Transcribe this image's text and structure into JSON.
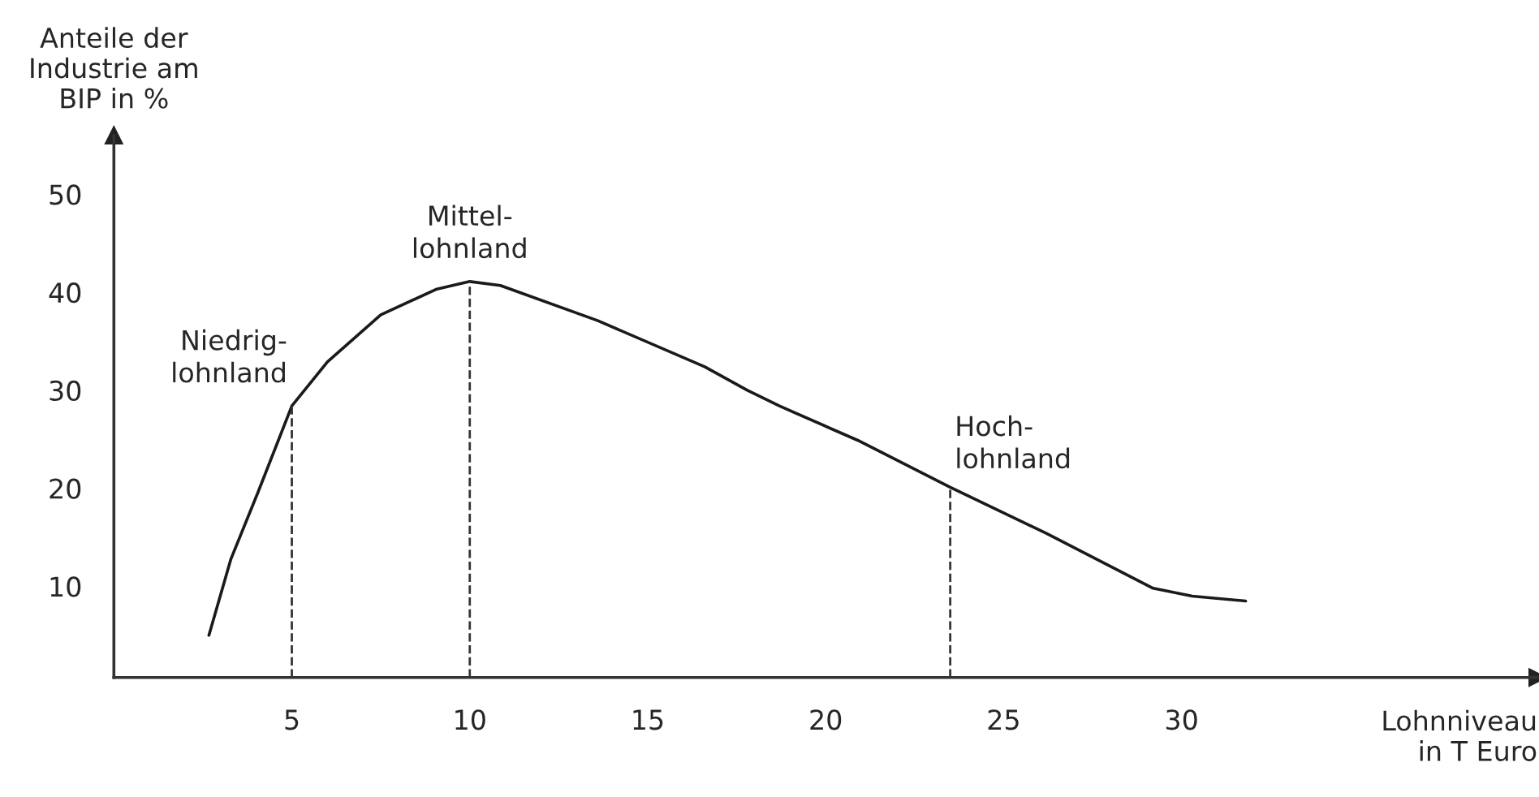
{
  "chart_data": {
    "type": "line",
    "xlabel": "Lohnniveau\nin T Euro",
    "ylabel": "Anteile der\nIndustrie am\nBIP in %",
    "series": [
      {
        "color": "#1a1a1a",
        "x": [
          2.67,
          3.29,
          4.05,
          5,
          6.0,
          7.5,
          9.05,
          10,
          10.86,
          13.6,
          16.6,
          17.8,
          18.7,
          20.9,
          23.5,
          26.2,
          29.2,
          30.3,
          31.8
        ],
        "values": [
          5.0,
          12.8,
          19.6,
          28.4,
          32.9,
          37.7,
          40.3,
          41.1,
          40.7,
          37.1,
          32.4,
          30.0,
          28.4,
          24.9,
          20.1,
          15.4,
          9.8,
          9.0,
          8.5
        ]
      }
    ],
    "xlim": [
      0,
      40
    ],
    "ylim": [
      0.7,
      56
    ],
    "xticks": [
      5,
      10,
      15,
      20,
      25,
      30
    ],
    "yticks": [
      10,
      20,
      30,
      40,
      50
    ],
    "ref_lines": [
      {
        "axis": "x",
        "value": 5,
        "label": "Niedrig-\nlohnland",
        "line_style": "dashed"
      },
      {
        "axis": "x",
        "value": 10,
        "label": "Mittel-\nlohnland",
        "line_style": "dashed"
      },
      {
        "axis": "x",
        "value": 23.5,
        "label": "Hoch-\nlohnland",
        "line_style": "dashed"
      }
    ],
    "grid": false,
    "legend": false,
    "marker": "none",
    "line_style": "solid"
  }
}
